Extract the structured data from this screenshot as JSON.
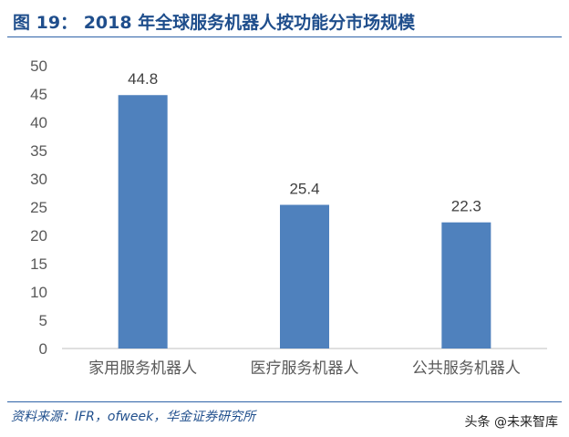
{
  "header": {
    "figure_label": "图 19：",
    "title": "2018 年全球服务机器人按功能分市场规模"
  },
  "chart_data": {
    "type": "bar",
    "categories": [
      "家用服务机器人",
      "医疗服务机器人",
      "公共服务机器人"
    ],
    "values": [
      44.8,
      25.4,
      22.3
    ],
    "value_labels": [
      "44.8",
      "25.4",
      "22.3"
    ],
    "yticks": [
      0,
      5,
      10,
      15,
      20,
      25,
      30,
      35,
      40,
      45,
      50
    ],
    "ylim": [
      0,
      50
    ],
    "title": "",
    "xlabel": "",
    "ylabel": "",
    "grid": false,
    "bar_color": "#4f81bd"
  },
  "footer": {
    "source": "资料来源：IFR，ofweek，华金证券研究所",
    "watermark": "头条 @未来智库"
  },
  "colors": {
    "accent": "#1f4e8c",
    "bar": "#4f81bd",
    "axis": "#bfbfbf",
    "tick_text": "#595959"
  }
}
